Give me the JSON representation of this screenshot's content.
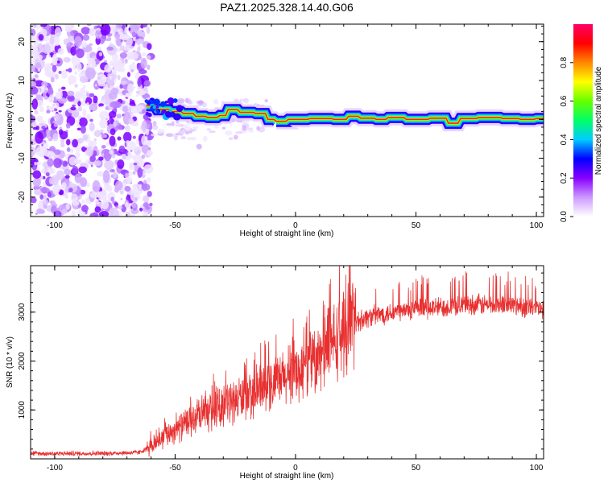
{
  "title": "PAZ1.2025.328.14.40.G06",
  "chart_data": [
    {
      "type": "heatmap",
      "name": "spectrogram",
      "xlabel": "Height of straight line (km)",
      "ylabel": "Frequency (Hz)",
      "xlim": [
        -110,
        103
      ],
      "ylim": [
        -25,
        24.5
      ],
      "xticks": [
        -100,
        -50,
        0,
        50,
        100
      ],
      "yticks": [
        20,
        10,
        0,
        -10,
        -20
      ],
      "xtick_labels": [
        "-100",
        "-50",
        "0",
        "50",
        "100"
      ],
      "ytick_labels": [
        "20",
        "10",
        "0",
        "-10",
        "-20"
      ],
      "noise_region_x": [
        -110,
        -62
      ],
      "signal_track": {
        "x": [
          -62,
          -55,
          -50,
          -45,
          -40,
          -35,
          -30,
          -28,
          -20,
          -15,
          -10,
          -8,
          0,
          10,
          20,
          22,
          30,
          35,
          40,
          50,
          60,
          65,
          70,
          80,
          90,
          95,
          103
        ],
        "freq": [
          3.5,
          2.5,
          2,
          1.5,
          0.8,
          0.5,
          1,
          2.5,
          1.8,
          1.5,
          0,
          -0.5,
          0,
          0.2,
          0,
          0.8,
          0.3,
          0,
          0.5,
          0,
          0.3,
          -1,
          0.2,
          0.5,
          0.2,
          0,
          0.2
        ]
      },
      "colorbar": {
        "label": "Normalized spectral amplitude",
        "range": [
          0,
          1
        ],
        "ticks": [
          0.0,
          0.2,
          0.4,
          0.6,
          0.8
        ],
        "tick_labels": [
          "0.0",
          "0.2",
          "0.4",
          "0.6",
          "0.8"
        ],
        "colors": [
          "#ffffff",
          "#cc99ff",
          "#8800ff",
          "#0000ff",
          "#00ccff",
          "#00ff66",
          "#66ff00",
          "#ffff00",
          "#ff8800",
          "#ff0000",
          "#ff0066"
        ]
      }
    },
    {
      "type": "line",
      "name": "snr",
      "xlabel": "Height of straight line (km)",
      "ylabel": "SNR (10 * v/v)",
      "xlim": [
        -110,
        103
      ],
      "ylim": [
        0,
        3950
      ],
      "xticks": [
        -100,
        -50,
        0,
        50,
        100
      ],
      "yticks": [
        1000,
        2000,
        3000
      ],
      "xtick_labels": [
        "-100",
        "-50",
        "0",
        "50",
        "100"
      ],
      "ytick_labels": [
        "1000",
        "2000",
        "3000"
      ],
      "color": "#e83030",
      "trend": {
        "x": [
          -110,
          -80,
          -65,
          -60,
          -55,
          -50,
          -40,
          -30,
          -20,
          -10,
          0,
          10,
          15,
          20,
          25,
          30,
          40,
          50,
          60,
          70,
          80,
          90,
          103
        ],
        "y": [
          110,
          110,
          130,
          250,
          450,
          600,
          850,
          1100,
          1300,
          1500,
          1750,
          2050,
          2350,
          2600,
          2800,
          2900,
          3000,
          3050,
          3100,
          3150,
          3150,
          3150,
          3050
        ]
      }
    }
  ]
}
